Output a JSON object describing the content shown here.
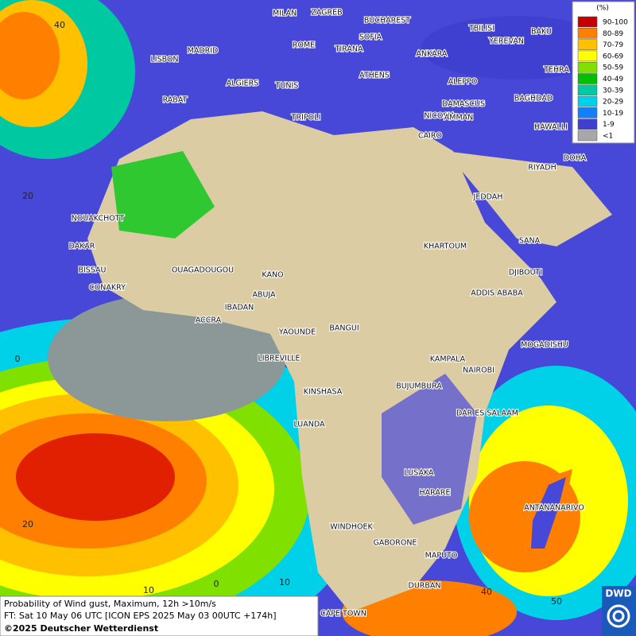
{
  "legend": {
    "unit": "(%)",
    "items": [
      {
        "label": "90-100",
        "color": "#c40000"
      },
      {
        "label": "80-89",
        "color": "#ff8000"
      },
      {
        "label": "70-79",
        "color": "#ffc000"
      },
      {
        "label": "60-69",
        "color": "#ffff00"
      },
      {
        "label": "50-59",
        "color": "#80e000"
      },
      {
        "label": "40-49",
        "color": "#00c000"
      },
      {
        "label": "30-39",
        "color": "#00c8a0"
      },
      {
        "label": "20-29",
        "color": "#00d0e8"
      },
      {
        "label": "10-19",
        "color": "#1080ff"
      },
      {
        "label": "1-9",
        "color": "#4040d0"
      },
      {
        "label": "<1",
        "color": "#a8a8a8"
      }
    ]
  },
  "grid_labels": {
    "lat": [
      "40",
      "20",
      "0",
      "20"
    ],
    "lon": [
      "10",
      "0",
      "10",
      "40",
      "50"
    ]
  },
  "cities": [
    "MILAN",
    "ZAGREB",
    "BUCHAREST",
    "TBILISI",
    "BAKU",
    "SOFIA",
    "YEREVAN",
    "MADRID",
    "ROME",
    "TIRANA",
    "ANKARA",
    "TEHRA",
    "LISBON",
    "ALGIERS",
    "TUNIS",
    "ATHENS",
    "ALEPPO",
    "RABAT",
    "NICOSIA",
    "DAMASCUS",
    "BAGHDAD",
    "TRIPOLI",
    "AMMAN",
    "HAWALLI",
    "CAIRO",
    "DOHA",
    "RIYADH",
    "JEDDAH",
    "NOUAKCHOTT",
    "SANA",
    "KHARTOUM",
    "DAKAR",
    "BISSAU",
    "OUAGADOUGOU",
    "DJIBOUTI",
    "KANO",
    "CONAKRY",
    "ADDIS ABABA",
    "ABUJA",
    "IBADAN",
    "ACCRA",
    "YAOUNDE",
    "BANGUI",
    "MOGADISHU",
    "LIBREVILLE",
    "KAMPALA",
    "NAIROBI",
    "KINSHASA",
    "BUJUMBURA",
    "DAR ES SALAAM",
    "LUANDA",
    "LUSAKA",
    "HARARE",
    "ANTANANARIVO",
    "WINDHOEK",
    "GABORONE",
    "MAPUTO",
    "DURBAN",
    "CAPE TOWN"
  ],
  "footer": {
    "line1": "Probability of Wind gust, Maximum, 12h >10m/s",
    "line2": "FT: Sat 10 May 06 UTC [ICON EPS 2025 May 03 00UTC +174h]",
    "copyright": "©2025 Deutscher Wetterdienst"
  },
  "logo": "DWD"
}
